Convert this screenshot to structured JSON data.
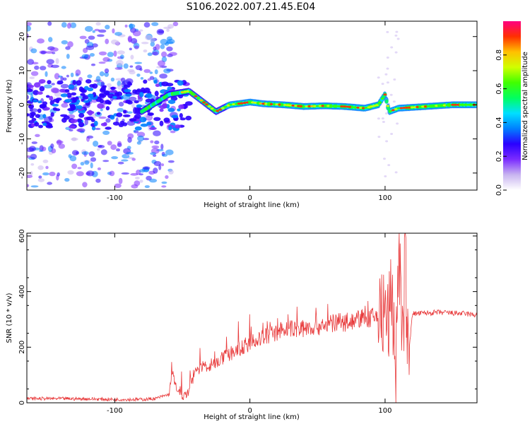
{
  "title": "S106.2022.007.21.45.E04",
  "chart_data": [
    {
      "type": "heatmap",
      "xlabel": "Height of straight line (km)",
      "ylabel": "Frequency (Hz)",
      "xlim": [
        -165,
        168
      ],
      "ylim": [
        -25,
        24.5
      ],
      "xticks": [
        -100,
        0,
        100
      ],
      "yticks": [
        -20,
        -10,
        0,
        10,
        20
      ],
      "colorbar": {
        "label": "Normalized spectral amplitude",
        "range": [
          0,
          1
        ],
        "ticks": [
          "0.0",
          "0.2",
          "0.4",
          "0.6",
          "0.8"
        ],
        "colormap": [
          "#ffffff",
          "#c8b4f0",
          "#7b2cff",
          "#2a00ff",
          "#0080ff",
          "#00e0ff",
          "#00ff60",
          "#40ff00",
          "#d0ff00",
          "#ffc000",
          "#ff3000",
          "#ff0080"
        ]
      },
      "ridge": {
        "x": [
          -165,
          -120,
          -80,
          -60,
          -45,
          -35,
          -25,
          -15,
          -5,
          0,
          10,
          25,
          40,
          55,
          70,
          85,
          95,
          100,
          103,
          110,
          130,
          150,
          168
        ],
        "y": [
          1,
          0.5,
          -2,
          3,
          4,
          1,
          -2,
          0,
          0.5,
          0.8,
          0.3,
          0,
          -0.5,
          -0.3,
          -0.5,
          -1,
          0,
          3,
          -2,
          -1,
          -0.5,
          0,
          0
        ]
      }
    },
    {
      "type": "line",
      "xlabel": "Height of straight line (km)",
      "ylabel": "SNR (10 * v/v)",
      "xlim": [
        -165,
        168
      ],
      "ylim": [
        0,
        610
      ],
      "xticks": [
        -100,
        0,
        100
      ],
      "yticks": [
        0,
        200,
        400,
        600
      ],
      "color": "#e8393a",
      "series": [
        {
          "x": [
            -165,
            -140,
            -120,
            -100,
            -80,
            -70,
            -60,
            -57,
            -55,
            -50,
            -45,
            -42,
            -40,
            -30,
            -20,
            -10,
            0,
            10,
            20,
            30,
            40,
            50,
            60,
            70,
            80,
            90,
            95,
            100,
            103,
            105,
            108,
            110,
            113,
            115,
            117,
            120,
            140,
            160,
            168
          ],
          "y": [
            15,
            15,
            14,
            12,
            12,
            15,
            30,
            110,
            60,
            20,
            40,
            90,
            120,
            135,
            160,
            190,
            215,
            235,
            255,
            265,
            270,
            275,
            285,
            290,
            300,
            305,
            310,
            315,
            300,
            420,
            100,
            600,
            180,
            550,
            130,
            320,
            325,
            320,
            315
          ]
        }
      ]
    }
  ]
}
